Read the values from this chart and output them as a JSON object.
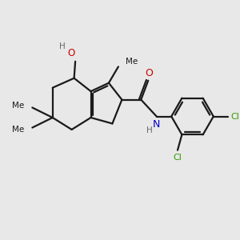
{
  "bg_color": "#e8e8e8",
  "bond_color": "#1a1a1a",
  "o_color": "#cc0000",
  "n_color": "#0000cc",
  "cl_color": "#339900",
  "h_color": "#666666",
  "lw": 1.6,
  "figsize": [
    3.0,
    3.0
  ],
  "dpi": 100,
  "xlim": [
    0,
    10
  ],
  "ylim": [
    0,
    10
  ]
}
